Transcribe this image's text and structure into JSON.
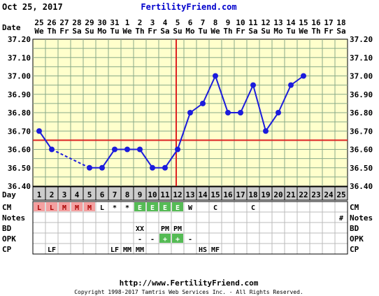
{
  "header": {
    "date_text": "Oct 25, 2017",
    "site": "FertilityFriend.com"
  },
  "axis": {
    "date_label": "Date",
    "day_label": "Day",
    "y_ticks": [
      "37.20",
      "37.10",
      "37.00",
      "36.90",
      "36.80",
      "36.70",
      "36.60",
      "36.50",
      "36.40"
    ]
  },
  "dates": [
    {
      "d": "25",
      "w": "We"
    },
    {
      "d": "26",
      "w": "Th"
    },
    {
      "d": "27",
      "w": "Fr"
    },
    {
      "d": "28",
      "w": "Sa"
    },
    {
      "d": "29",
      "w": "Su"
    },
    {
      "d": "30",
      "w": "Mo"
    },
    {
      "d": "31",
      "w": "Tu"
    },
    {
      "d": "1",
      "w": "We"
    },
    {
      "d": "2",
      "w": "Th"
    },
    {
      "d": "3",
      "w": "Fr"
    },
    {
      "d": "4",
      "w": "Sa"
    },
    {
      "d": "5",
      "w": "Su"
    },
    {
      "d": "6",
      "w": "Mo"
    },
    {
      "d": "7",
      "w": "Tu"
    },
    {
      "d": "8",
      "w": "We"
    },
    {
      "d": "9",
      "w": "Th"
    },
    {
      "d": "10",
      "w": "Fr"
    },
    {
      "d": "11",
      "w": "Sa"
    },
    {
      "d": "12",
      "w": "Su"
    },
    {
      "d": "13",
      "w": "Mo"
    },
    {
      "d": "14",
      "w": "Tu"
    },
    {
      "d": "15",
      "w": "We"
    },
    {
      "d": "16",
      "w": "Th"
    },
    {
      "d": "17",
      "w": "Fr"
    },
    {
      "d": "18",
      "w": "Sa"
    }
  ],
  "days": [
    "1",
    "2",
    "3",
    "4",
    "5",
    "6",
    "7",
    "8",
    "9",
    "10",
    "11",
    "12",
    "13",
    "14",
    "15",
    "16",
    "17",
    "18",
    "19",
    "20",
    "21",
    "22",
    "23",
    "24",
    "25"
  ],
  "rows": {
    "cm": {
      "label": "CM",
      "cells": [
        "L",
        "L",
        "M",
        "M",
        "M",
        "L",
        "*",
        "*",
        "E",
        "E",
        "E",
        "E",
        "W",
        "",
        "C",
        "",
        "",
        "C",
        "",
        "",
        "",
        "",
        "",
        "",
        ""
      ]
    },
    "notes": {
      "label": "Notes",
      "cells": [
        "",
        "",
        "",
        "",
        "",
        "",
        "",
        "",
        "",
        "",
        "",
        "",
        "",
        "",
        "",
        "",
        "",
        "",
        "",
        "",
        "",
        "",
        "",
        "",
        "#"
      ]
    },
    "bd": {
      "label": "BD",
      "cells": [
        "",
        "",
        "",
        "",
        "",
        "",
        "",
        "",
        "XX",
        "",
        "PM",
        "PM",
        "",
        "",
        "",
        "",
        "",
        "",
        "",
        "",
        "",
        "",
        "",
        "",
        ""
      ]
    },
    "opk": {
      "label": "OPK",
      "cells": [
        "",
        "",
        "",
        "",
        "",
        "",
        "",
        "",
        "-",
        "-",
        "+",
        "+",
        "-",
        "",
        "",
        "",
        "",
        "",
        "",
        "",
        "",
        "",
        "",
        "",
        ""
      ]
    },
    "cp": {
      "label": "CP",
      "cells": [
        "",
        "LF",
        "",
        "",
        "",
        "",
        "LF",
        "MM",
        "MM",
        "",
        "",
        "",
        "",
        "HS",
        "MF",
        "",
        "",
        "",
        "",
        "",
        "",
        "",
        "",
        "",
        ""
      ]
    }
  },
  "colors": {
    "plot_bg": "#ffffcc",
    "grid": "#88aa88",
    "line": "#1c1cdc",
    "coverline": "#dd2222",
    "period": "#f4a0a0",
    "fertile": "#55bb55"
  },
  "footer": {
    "url": "http://www.FertilityFriend.com",
    "copyright": "Copyright 1998-2017 Tamtris Web Services Inc. - All Rights Reserved."
  },
  "chart_data": {
    "type": "line",
    "x": [
      1,
      2,
      3,
      4,
      5,
      6,
      7,
      8,
      9,
      10,
      11,
      12,
      13,
      14,
      15,
      16,
      17,
      18,
      19,
      20,
      21,
      22
    ],
    "values": [
      36.7,
      36.6,
      null,
      null,
      36.5,
      36.5,
      36.6,
      36.6,
      36.6,
      36.5,
      36.5,
      36.6,
      36.8,
      36.85,
      37.0,
      36.8,
      36.8,
      36.95,
      36.7,
      36.8,
      36.95,
      37.0
    ],
    "dashed_segments": [
      [
        2,
        5
      ]
    ],
    "ylim": [
      36.4,
      37.2
    ],
    "coverline": 36.65,
    "ovulation_day": 12,
    "period_days": [
      1,
      2,
      3,
      4,
      5
    ],
    "fertile_days": [
      9,
      10,
      11,
      12
    ],
    "grid": true
  }
}
